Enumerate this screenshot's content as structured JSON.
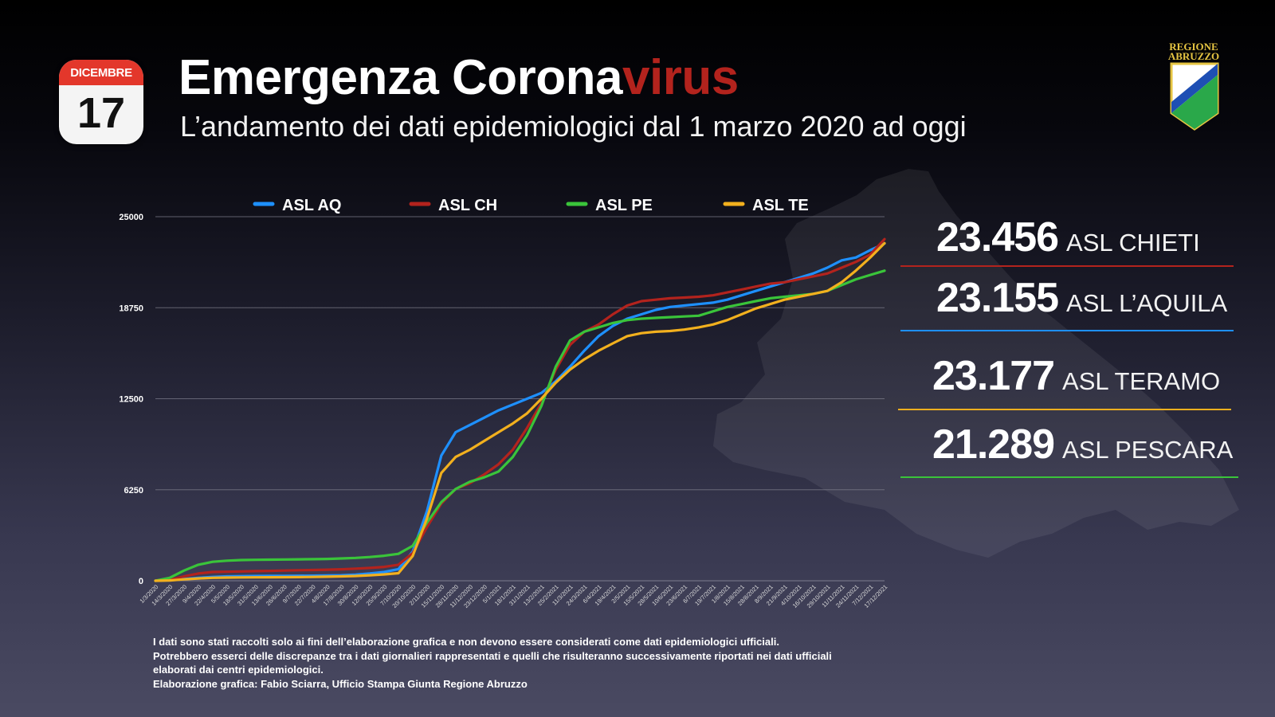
{
  "header": {
    "calendar_month": "DICEMBRE",
    "calendar_day": "17",
    "title_main": "Emergenza Corona",
    "title_accent": "virus",
    "subtitle": "L’andamento dei dati epidemiologici dal 1 marzo 2020 ad oggi"
  },
  "logo": {
    "line1": "REGIONE",
    "line2": "ABRUZZO",
    "icon": "abruzzo-region-shield"
  },
  "colors": {
    "asl_aq": "#1e90ff",
    "asl_ch": "#b3231d",
    "asl_pe": "#3ac43a",
    "asl_te": "#f2b01e",
    "title_accent": "#b3231d"
  },
  "stats": [
    {
      "value": "23.456",
      "label": "ASL CHIETI",
      "color": "#b3231d"
    },
    {
      "value": "23.155",
      "label": "ASL L’AQUILA",
      "color": "#1e90ff"
    },
    {
      "value": "23.177",
      "label": "ASL TERAMO",
      "color": "#f2b01e"
    },
    {
      "value": "21.289",
      "label": "ASL PESCARA",
      "color": "#3ac43a"
    }
  ],
  "chart_data": {
    "type": "line",
    "title": "",
    "xlabel": "",
    "ylabel": "",
    "ylim": [
      0,
      25000
    ],
    "y_ticks": [
      "25000",
      "18750",
      "12500",
      "6250",
      "0"
    ],
    "grid": true,
    "legend_placement": "top",
    "x_labels": [
      "1/3/2020",
      "14/3/2020",
      "27/3/2020",
      "9/4/2020",
      "22/4/2020",
      "5/5/2020",
      "18/5/2020",
      "31/5/2020",
      "13/6/2020",
      "26/6/2020",
      "9/7/2020",
      "22/7/2020",
      "4/8/2020",
      "17/8/2020",
      "30/8/2020",
      "12/9/2020",
      "25/9/2020",
      "7/10/2020",
      "20/10/2020",
      "2/11/2020",
      "15/11/2020",
      "28/11/2020",
      "11/12/2020",
      "23/12/2020",
      "5/1/2021",
      "18/1/2021",
      "31/1/2021",
      "13/2/2021",
      "25/2/2021",
      "11/3/2021",
      "24/3/2021",
      "6/4/2021",
      "19/4/2021",
      "2/5/2021",
      "15/5/2021",
      "28/5/2021",
      "10/6/2021",
      "23/6/2021",
      "6/7/2021",
      "19/7/2021",
      "1/8/2021",
      "15/8/2021",
      "28/8/2021",
      "8/9/2021",
      "21/9/2021",
      "4/10/2021",
      "16/10/2021",
      "29/10/2021",
      "11/11/2021",
      "24/11/2021",
      "7/12/2021",
      "17/12/2021"
    ],
    "series": [
      {
        "name": "ASL AQ",
        "color": "#1e90ff",
        "values": [
          0,
          40,
          120,
          200,
          260,
          300,
          320,
          330,
          335,
          340,
          345,
          350,
          360,
          380,
          420,
          500,
          600,
          800,
          2000,
          4800,
          8600,
          10200,
          10700,
          11200,
          11700,
          12100,
          12500,
          12900,
          13700,
          14700,
          15800,
          16800,
          17500,
          18000,
          18300,
          18600,
          18800,
          18900,
          19000,
          19100,
          19300,
          19600,
          19900,
          20200,
          20500,
          20800,
          21100,
          21500,
          22000,
          22200,
          22700,
          23155
        ]
      },
      {
        "name": "ASL CH",
        "color": "#b3231d",
        "values": [
          0,
          60,
          300,
          500,
          600,
          620,
          640,
          660,
          680,
          700,
          720,
          740,
          760,
          790,
          830,
          880,
          950,
          1100,
          1900,
          3700,
          5300,
          6300,
          6700,
          7300,
          8000,
          9000,
          10500,
          12200,
          14500,
          16200,
          17100,
          17600,
          18300,
          18900,
          19200,
          19300,
          19400,
          19450,
          19500,
          19600,
          19800,
          20000,
          20200,
          20400,
          20500,
          20700,
          20900,
          21100,
          21500,
          21900,
          22400,
          23456
        ]
      },
      {
        "name": "ASL PE",
        "color": "#3ac43a",
        "values": [
          0,
          200,
          700,
          1100,
          1300,
          1380,
          1420,
          1440,
          1450,
          1460,
          1470,
          1480,
          1500,
          1530,
          1570,
          1630,
          1720,
          1850,
          2400,
          4000,
          5400,
          6300,
          6800,
          7100,
          7500,
          8500,
          10000,
          12000,
          14700,
          16500,
          17100,
          17400,
          17700,
          17900,
          18000,
          18050,
          18100,
          18150,
          18200,
          18500,
          18800,
          19000,
          19200,
          19400,
          19500,
          19600,
          19700,
          19900,
          20300,
          20700,
          21000,
          21289
        ]
      },
      {
        "name": "ASL TE",
        "color": "#f2b01e",
        "values": [
          0,
          20,
          100,
          160,
          200,
          220,
          230,
          235,
          240,
          245,
          250,
          260,
          280,
          300,
          330,
          380,
          440,
          520,
          1700,
          4300,
          7400,
          8500,
          9000,
          9600,
          10200,
          10800,
          11500,
          12500,
          13600,
          14500,
          15200,
          15800,
          16300,
          16800,
          17000,
          17100,
          17150,
          17250,
          17400,
          17600,
          17900,
          18300,
          18700,
          19000,
          19300,
          19500,
          19700,
          19900,
          20500,
          21300,
          22200,
          23177
        ]
      }
    ]
  },
  "footnote": [
    "I dati sono stati raccolti solo ai fini dell’elaborazione grafica e non devono essere considerati come dati epidemiologici ufficiali.",
    "Potrebbero esserci delle discrepanze tra i dati giornalieri rappresentati e quelli che risulteranno successivamente riportati nei dati ufficiali",
    "elaborati dai centri epidemiologici.",
    "Elaborazione grafica: Fabio Sciarra, Ufficio Stampa Giunta Regione Abruzzo"
  ]
}
